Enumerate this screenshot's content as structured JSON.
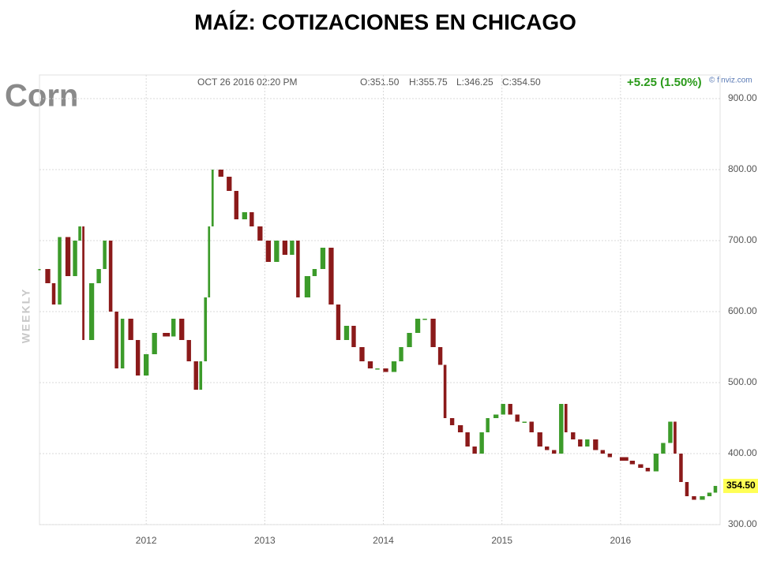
{
  "chart_data": {
    "type": "candlestick",
    "title": "MAÍZ: COTIZACIONES EN CHICAGO",
    "symbol": "Corn",
    "timestamp": "OCT 26 2016 02:20 PM",
    "ohlc_texts": [
      "O:351.50",
      "H:355.75",
      "L:346.25",
      "C:354.50"
    ],
    "change": "+5.25 (1.50%)",
    "source": "© finviz.com",
    "period": "WEEKLY",
    "up_color": "#3c9b2a",
    "down_color": "#8b1a1a",
    "last": {
      "value": 354.5,
      "label": "354.50"
    },
    "last_color": "#ffff55",
    "grid": true,
    "xlim": [
      2011.1,
      2016.84
    ],
    "xticks": [
      2012,
      2013,
      2014,
      2015,
      2016
    ],
    "ylim": [
      300,
      900
    ],
    "yticks": [
      {
        "value": 300,
        "label": "300.00"
      },
      {
        "value": 400,
        "label": "400.00"
      },
      {
        "value": 500,
        "label": "500.00"
      },
      {
        "value": 600,
        "label": "600.00"
      },
      {
        "value": 700,
        "label": "700.00"
      },
      {
        "value": 800,
        "label": "800.00"
      },
      {
        "value": 900,
        "label": "900.00"
      }
    ],
    "x": [
      2011.1,
      2011.17,
      2011.22,
      2011.27,
      2011.34,
      2011.4,
      2011.44,
      2011.47,
      2011.54,
      2011.6,
      2011.65,
      2011.7,
      2011.75,
      2011.8,
      2011.87,
      2011.93,
      2012.0,
      2012.07,
      2012.17,
      2012.23,
      2012.3,
      2012.36,
      2012.42,
      2012.46,
      2012.5,
      2012.53,
      2012.56,
      2012.63,
      2012.7,
      2012.76,
      2012.83,
      2012.89,
      2012.96,
      2013.03,
      2013.1,
      2013.17,
      2013.23,
      2013.28,
      2013.36,
      2013.42,
      2013.49,
      2013.56,
      2013.62,
      2013.69,
      2013.75,
      2013.82,
      2013.89,
      2013.95,
      2014.02,
      2014.09,
      2014.15,
      2014.22,
      2014.29,
      2014.35,
      2014.42,
      2014.48,
      2014.52,
      2014.58,
      2014.65,
      2014.71,
      2014.77,
      2014.83,
      2014.88,
      2014.95,
      2015.01,
      2015.07,
      2015.13,
      2015.19,
      2015.25,
      2015.32,
      2015.38,
      2015.44,
      2015.5,
      2015.54,
      2015.6,
      2015.66,
      2015.72,
      2015.79,
      2015.85,
      2015.91,
      2016.03,
      2016.1,
      2016.17,
      2016.23,
      2016.3,
      2016.36,
      2016.42,
      2016.46,
      2016.51,
      2016.56,
      2016.62,
      2016.69,
      2016.75,
      2016.8
    ],
    "values": [
      660,
      640,
      610,
      705,
      650,
      700,
      720,
      560,
      640,
      660,
      700,
      600,
      520,
      590,
      560,
      510,
      540,
      570,
      565,
      590,
      560,
      530,
      490,
      530,
      620,
      720,
      800,
      790,
      770,
      730,
      740,
      720,
      700,
      670,
      700,
      680,
      700,
      620,
      650,
      660,
      690,
      610,
      560,
      580,
      550,
      530,
      520,
      520,
      515,
      530,
      550,
      570,
      590,
      590,
      550,
      525,
      450,
      440,
      430,
      410,
      400,
      430,
      450,
      455,
      470,
      455,
      445,
      445,
      430,
      410,
      405,
      400,
      470,
      430,
      420,
      410,
      420,
      405,
      400,
      395,
      390,
      385,
      380,
      375,
      400,
      415,
      445,
      400,
      360,
      340,
      335,
      340,
      345,
      354.5
    ]
  }
}
